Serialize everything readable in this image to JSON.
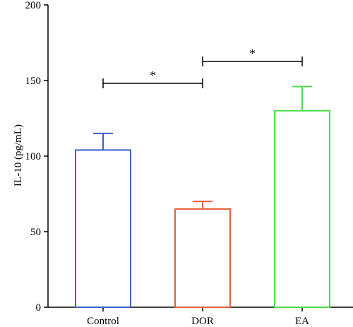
{
  "chart_data": {
    "type": "bar",
    "title": "",
    "xlabel": "",
    "ylabel": "IL-10 (pg/mL)",
    "ylim": [
      0,
      200
    ],
    "yticks": [
      0,
      50,
      100,
      150,
      200
    ],
    "grid": false,
    "legend": "none",
    "categories": [
      "Control",
      "DOR",
      "EA"
    ],
    "values": [
      104,
      65,
      130
    ],
    "error_upper": [
      115,
      70,
      146
    ],
    "colors": [
      "#3a5fcd",
      "#e3603a",
      "#4ddc4d"
    ],
    "significance": [
      {
        "from": "Control",
        "to": "DOR",
        "label": "*"
      },
      {
        "from": "DOR",
        "to": "EA",
        "label": "*"
      }
    ]
  }
}
